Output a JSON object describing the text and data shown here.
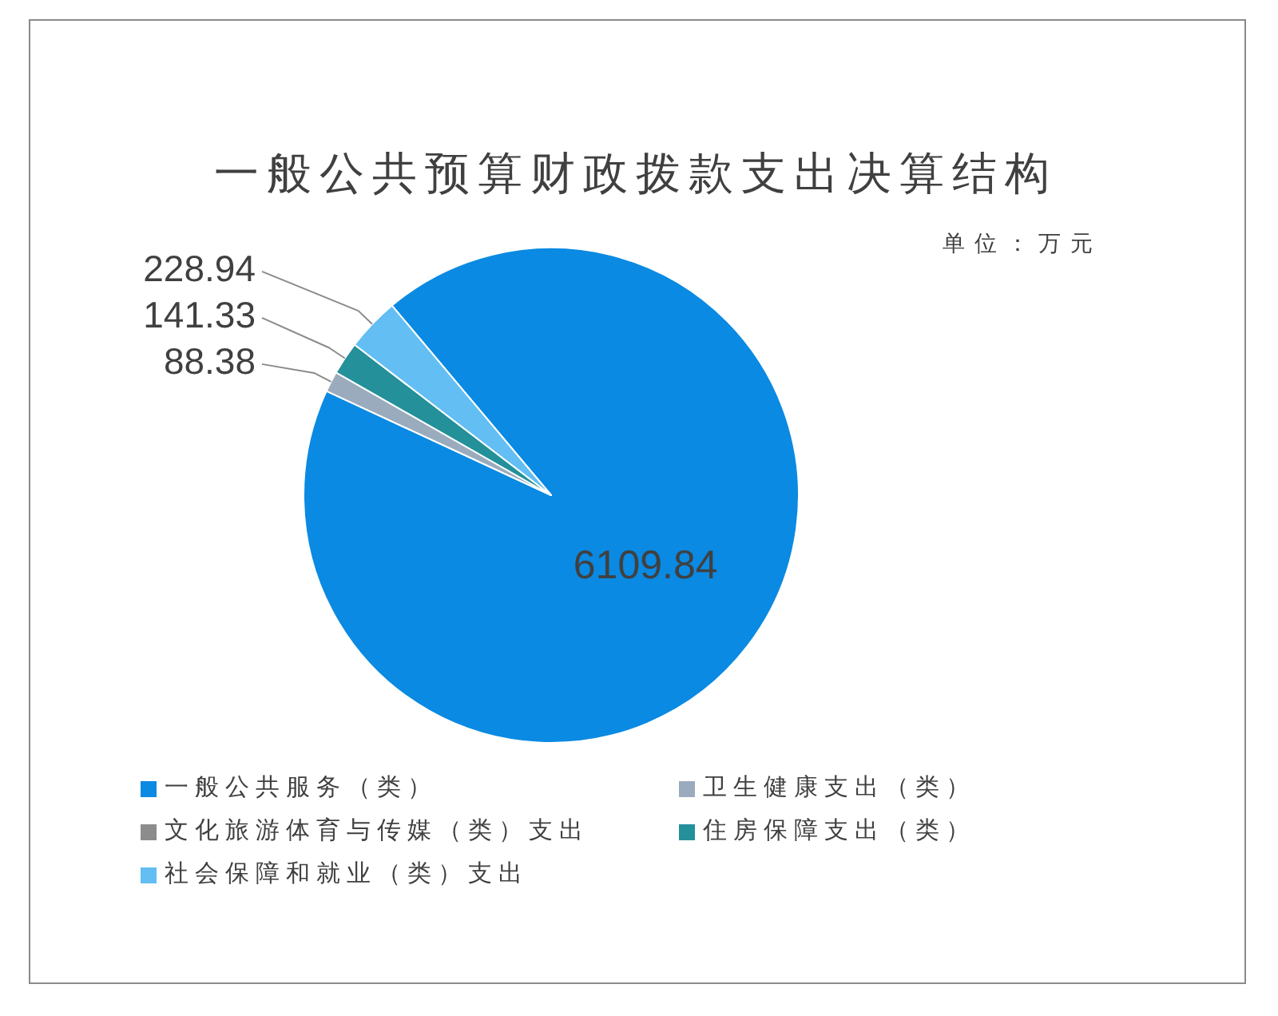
{
  "chart_data": {
    "type": "pie",
    "title": "一般公共预算财政拨款支出决算结构",
    "annotations": [
      "单位：万元"
    ],
    "categories": [
      "一般公共服务（类）",
      "卫生健康支出（类）",
      "文化旅游体育与传媒（类）支出",
      "住房保障支出（类）",
      "社会保障和就业（类）支出"
    ],
    "values": [
      6109.84,
      88.38,
      null,
      141.33,
      228.94
    ],
    "colors": [
      "#0a8ae2",
      "#9aabbd",
      "#8c8c8c",
      "#23909a",
      "#62bef3"
    ],
    "data_labels": true,
    "legend": "bottom"
  }
}
